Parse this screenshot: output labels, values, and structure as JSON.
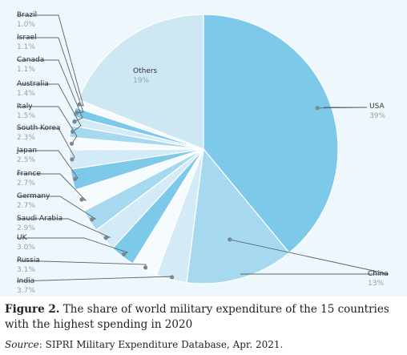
{
  "caption": {
    "figure_label": "Figure 2.",
    "text": " The share of world military expenditure of the 15 countries with the highest spending in 2020"
  },
  "source": {
    "label": "Source",
    "text": ": SIPRI Military Expenditure Database, Apr. 2021."
  },
  "chart_data": {
    "type": "pie",
    "slices": [
      {
        "label": "USA",
        "value": 39,
        "value_label": "39%",
        "color": "#7dc9ea"
      },
      {
        "label": "China",
        "value": 13,
        "value_label": "13%",
        "color": "#a6d9ef"
      },
      {
        "label": "India",
        "value": 3.7,
        "value_label": "3.7%",
        "color": "#d2ebf7"
      },
      {
        "label": "Russia",
        "value": 3.1,
        "value_label": "3.1%",
        "color": "#f6fbfe"
      },
      {
        "label": "UK",
        "value": 3.0,
        "value_label": "3.0%",
        "color": "#7dc9ea"
      },
      {
        "label": "Saudi Arabia",
        "value": 2.9,
        "value_label": "2.9%",
        "color": "#d2ebf7"
      },
      {
        "label": "Germany",
        "value": 2.7,
        "value_label": "2.7%",
        "color": "#a6d9ef"
      },
      {
        "label": "France",
        "value": 2.7,
        "value_label": "2.7%",
        "color": "#f6fbfe"
      },
      {
        "label": "Japan",
        "value": 2.5,
        "value_label": "2.5%",
        "color": "#7dc9ea"
      },
      {
        "label": "South Korea",
        "value": 2.3,
        "value_label": "2.3%",
        "color": "#d2ebf7"
      },
      {
        "label": "Italy",
        "value": 1.5,
        "value_label": "1.5%",
        "color": "#f6fbfe"
      },
      {
        "label": "Australia",
        "value": 1.4,
        "value_label": "1.4%",
        "color": "#a6d9ef"
      },
      {
        "label": "Canada",
        "value": 1.1,
        "value_label": "1.1%",
        "color": "#d2ebf7"
      },
      {
        "label": "Israel",
        "value": 1.1,
        "value_label": "1.1%",
        "color": "#7dc9ea"
      },
      {
        "label": "Brazil",
        "value": 1.0,
        "value_label": "1.0%",
        "color": "#f6fbfe"
      },
      {
        "label": "Others",
        "value": 19,
        "value_label": "19%",
        "color": "#cde7f3"
      }
    ]
  }
}
